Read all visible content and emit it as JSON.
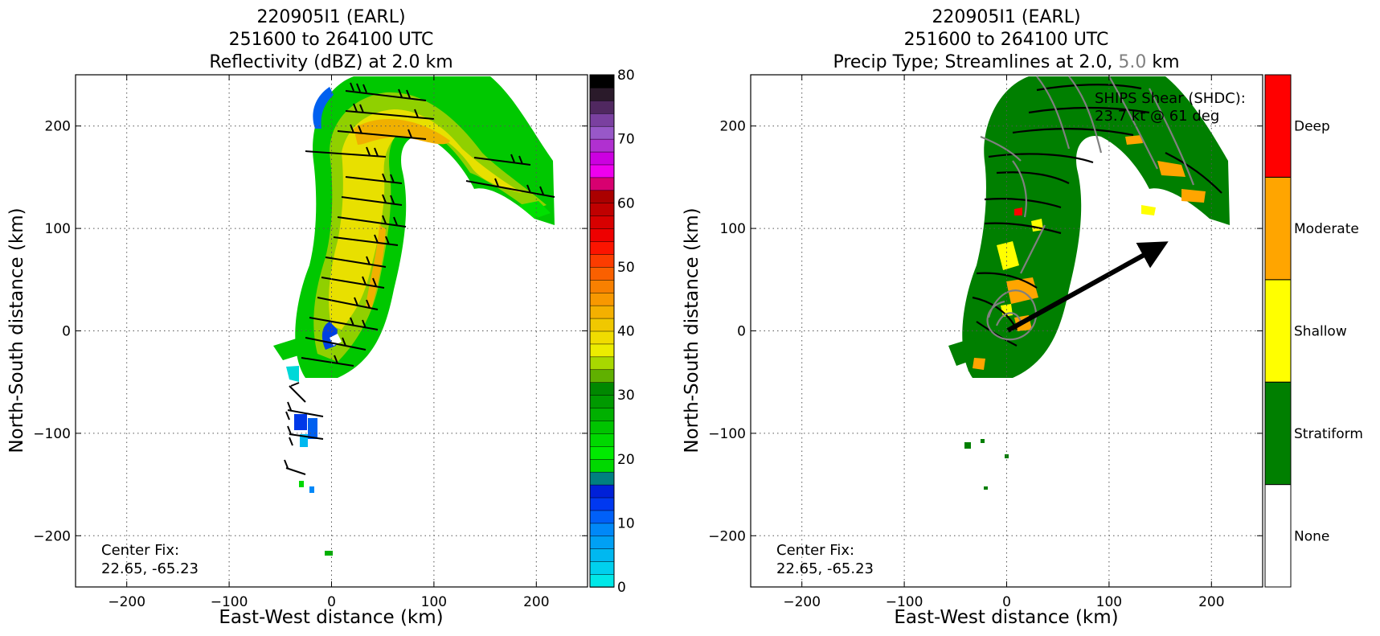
{
  "chart_data": [
    {
      "type": "heatmap",
      "title_lines": [
        "220905I1 (EARL)",
        "251600 to 264100 UTC",
        "Reflectivity (dBZ) at 2.0 km"
      ],
      "xlabel": "East-West distance (km)",
      "ylabel": "North-South distance (km)",
      "xlim": [
        -250,
        250
      ],
      "ylim": [
        -250,
        250
      ],
      "xticks": [
        -200,
        -100,
        0,
        100,
        200
      ],
      "yticks": [
        -200,
        -100,
        0,
        100,
        200
      ],
      "xtick_labels": [
        "−200",
        "−100",
        "0",
        "100",
        "200"
      ],
      "ytick_labels": [
        "−200",
        "−100",
        "0",
        "100",
        "200"
      ],
      "grid": true,
      "annotation_lines": [
        "Center Fix:",
        "22.65, -65.23"
      ],
      "overlay": "wind barbs",
      "colorbar": {
        "range": [
          0,
          80
        ],
        "step": 2.5,
        "tick_values": [
          0,
          10,
          20,
          30,
          40,
          50,
          60,
          70,
          80
        ],
        "tick_labels": [
          "0",
          "10",
          "20",
          "30",
          "40",
          "50",
          "60",
          "70",
          "80"
        ],
        "colors": [
          "#00e8e8",
          "#00d0ee",
          "#00b8f0",
          "#00a0f4",
          "#0088f8",
          "#0060f8",
          "#0038f0",
          "#0020d8",
          "#008080",
          "#00d800",
          "#00ea00",
          "#00d800",
          "#00c400",
          "#00b000",
          "#009a00",
          "#008800",
          "#60b000",
          "#a8d800",
          "#ecec00",
          "#f0dc00",
          "#f0c800",
          "#f4b000",
          "#f89800",
          "#f88000",
          "#fa6000",
          "#fc3c00",
          "#fc1400",
          "#ee0000",
          "#d80000",
          "#c00000",
          "#aa0000",
          "#d80070",
          "#ee00ee",
          "#cc00e0",
          "#b030d0",
          "#9858c8",
          "#7a40a0",
          "#502860",
          "#2a1a2a",
          "#000000"
        ]
      }
    },
    {
      "type": "heatmap",
      "title_lines": [
        "220905I1 (EARL)",
        "251600 to 264100 UTC"
      ],
      "title_line3": {
        "prefix": "Precip Type; Streamlines at 2.0, ",
        "highlight": "5.0",
        "suffix": " km",
        "highlight_color": "#808080"
      },
      "xlabel": "East-West distance (km)",
      "ylabel": "North-South distance (km)",
      "xlim": [
        -250,
        250
      ],
      "ylim": [
        -250,
        250
      ],
      "xticks": [
        -200,
        -100,
        0,
        100,
        200
      ],
      "yticks": [
        -200,
        -100,
        0,
        100,
        200
      ],
      "xtick_labels": [
        "−200",
        "−100",
        "0",
        "100",
        "200"
      ],
      "ytick_labels": [
        "−200",
        "−100",
        "0",
        "100",
        "200"
      ],
      "grid": true,
      "annotation_lines": [
        "Center Fix:",
        "22.65, -65.23"
      ],
      "shear_label_lines": [
        "SHIPS Shear (SHDC):",
        "23.7 kt @ 61 deg"
      ],
      "shear_arrow": {
        "from": [
          0,
          0
        ],
        "to": [
          165,
          90
        ]
      },
      "overlay": "streamlines (black 2.0 km, gray 5.0 km)",
      "categories": [
        {
          "name": "None",
          "color": "#ffffff"
        },
        {
          "name": "Stratiform",
          "color": "#007f00"
        },
        {
          "name": "Shallow",
          "color": "#ffff00"
        },
        {
          "name": "Moderate",
          "color": "#ffa500"
        },
        {
          "name": "Deep",
          "color": "#ff0000"
        }
      ]
    }
  ]
}
